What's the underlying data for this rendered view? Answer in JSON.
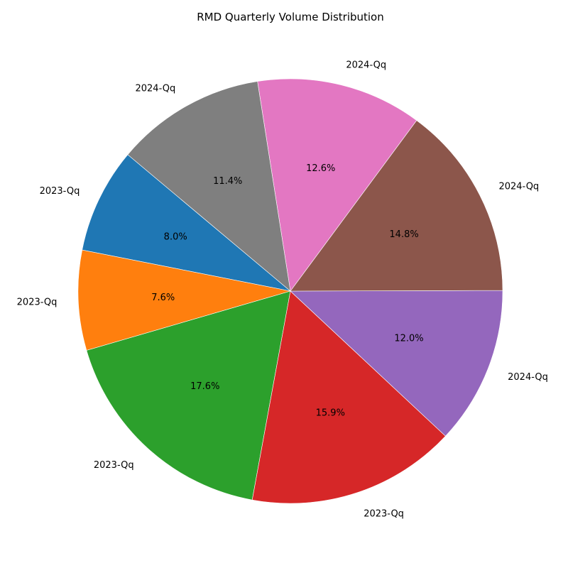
{
  "chart_data": {
    "type": "pie",
    "title": "RMD Quarterly Volume Distribution",
    "start_angle_deg": 140,
    "direction": "counterclockwise",
    "slices": [
      {
        "label": "2023-Qq",
        "value": 8.0,
        "pct_label": "8.0%",
        "color": "#1f77b4"
      },
      {
        "label": "2023-Qq",
        "value": 7.6,
        "pct_label": "7.6%",
        "color": "#ff7f0e"
      },
      {
        "label": "2023-Qq",
        "value": 17.6,
        "pct_label": "17.6%",
        "color": "#2ca02c"
      },
      {
        "label": "2023-Qq",
        "value": 15.9,
        "pct_label": "15.9%",
        "color": "#d62728"
      },
      {
        "label": "2024-Qq",
        "value": 12.0,
        "pct_label": "12.0%",
        "color": "#9467bd"
      },
      {
        "label": "2024-Qq",
        "value": 14.8,
        "pct_label": "14.8%",
        "color": "#8c564b"
      },
      {
        "label": "2024-Qq",
        "value": 12.6,
        "pct_label": "12.6%",
        "color": "#e377c2"
      },
      {
        "label": "2024-Qq",
        "value": 11.4,
        "pct_label": "11.4%",
        "color": "#7f7f7f"
      }
    ]
  }
}
